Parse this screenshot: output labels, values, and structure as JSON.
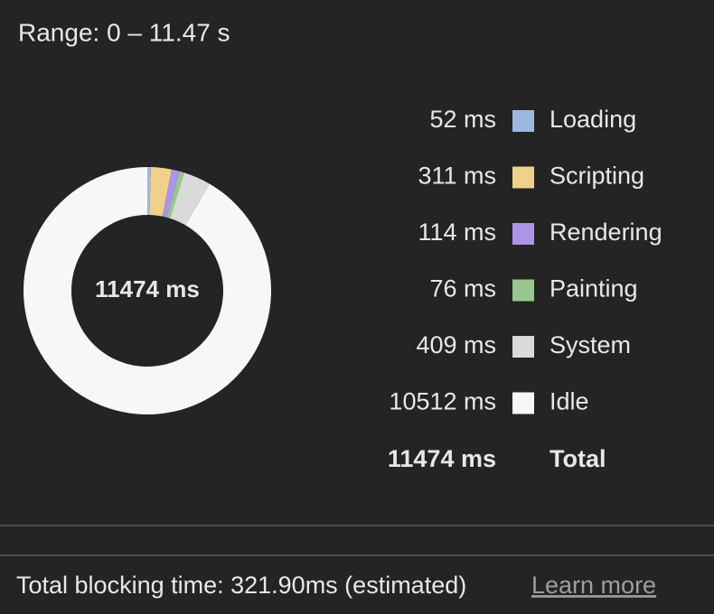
{
  "range_label": "Range: 0 – 11.47 s",
  "chart_data": {
    "type": "donut",
    "categories": [
      "Loading",
      "Scripting",
      "Rendering",
      "Painting",
      "System",
      "Idle"
    ],
    "values": [
      52,
      311,
      114,
      76,
      409,
      10512
    ],
    "value_labels": [
      "52 ms",
      "311 ms",
      "114 ms",
      "76 ms",
      "409 ms",
      "10512 ms"
    ],
    "colors": [
      "#9db8e0",
      "#f0d18a",
      "#ab95e8",
      "#98c68e",
      "#dadada",
      "#f7f7f7"
    ],
    "total": 11474,
    "total_label": "11474 ms",
    "total_name": "Total"
  },
  "footer": {
    "text": "Total blocking time: 321.90ms (estimated)",
    "link": "Learn more"
  }
}
